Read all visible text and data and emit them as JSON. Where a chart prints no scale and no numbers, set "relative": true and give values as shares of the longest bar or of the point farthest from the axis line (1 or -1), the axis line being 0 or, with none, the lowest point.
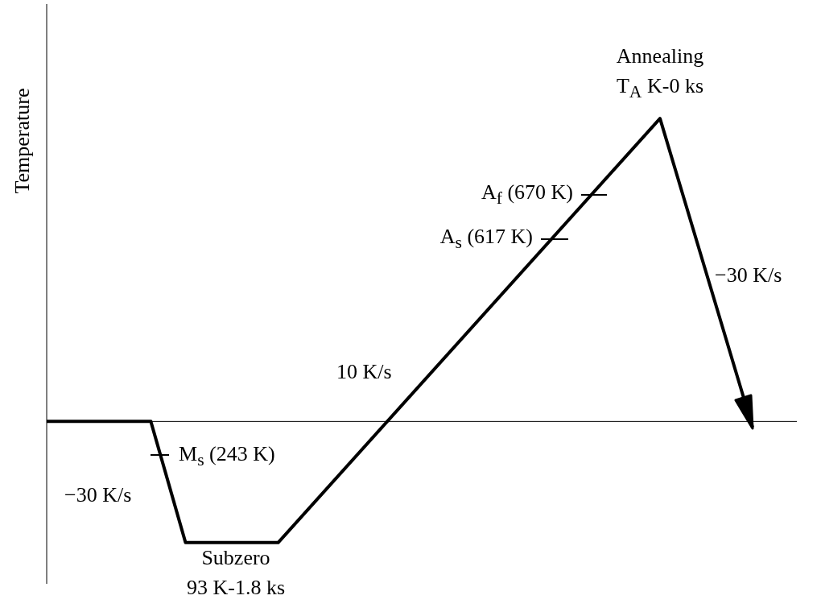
{
  "chart_data": {
    "type": "line",
    "relative": true,
    "ylabel": "Temperature",
    "color": "#000000",
    "categories": [
      null,
      null,
      null,
      null,
      null,
      null,
      null,
      null,
      null,
      null,
      null,
      null,
      null,
      null,
      null,
      null,
      null,
      null,
      null,
      null,
      null,
      null,
      null,
      null,
      null,
      null,
      null,
      null,
      null,
      null,
      null,
      null,
      null,
      null,
      null,
      null,
      null,
      null,
      null,
      null,
      null,
      null,
      null,
      null,
      null,
      null,
      null,
      null,
      null,
      null,
      null,
      null,
      null,
      null,
      null,
      null,
      null,
      null,
      null,
      null,
      null,
      null
    ],
    "values": [
      0,
      null,
      null,
      null,
      null,
      null,
      null,
      null,
      null,
      0,
      null,
      null,
      -0.4,
      null,
      null,
      null,
      null,
      null,
      null,
      null,
      -0.4,
      null,
      null,
      null,
      null,
      null,
      null,
      null,
      null,
      null,
      null,
      null,
      null,
      null,
      null,
      null,
      null,
      null,
      null,
      null,
      null,
      null,
      null,
      null,
      null,
      null,
      null,
      null,
      null,
      null,
      null,
      null,
      null,
      1,
      null,
      null,
      null,
      null,
      null,
      null,
      null,
      -0.02
    ],
    "annotations": [
      "Annealing",
      "T$_{A}$ K-0 ks",
      "A$_{f}$ (670 K)",
      "A$_{s}$ (617 K)",
      "−30 K/s",
      "10 K/s",
      "M$_{s}$ (243 K)",
      "−30 K/s",
      "Subzero",
      "93 K-1.8 ks"
    ]
  }
}
